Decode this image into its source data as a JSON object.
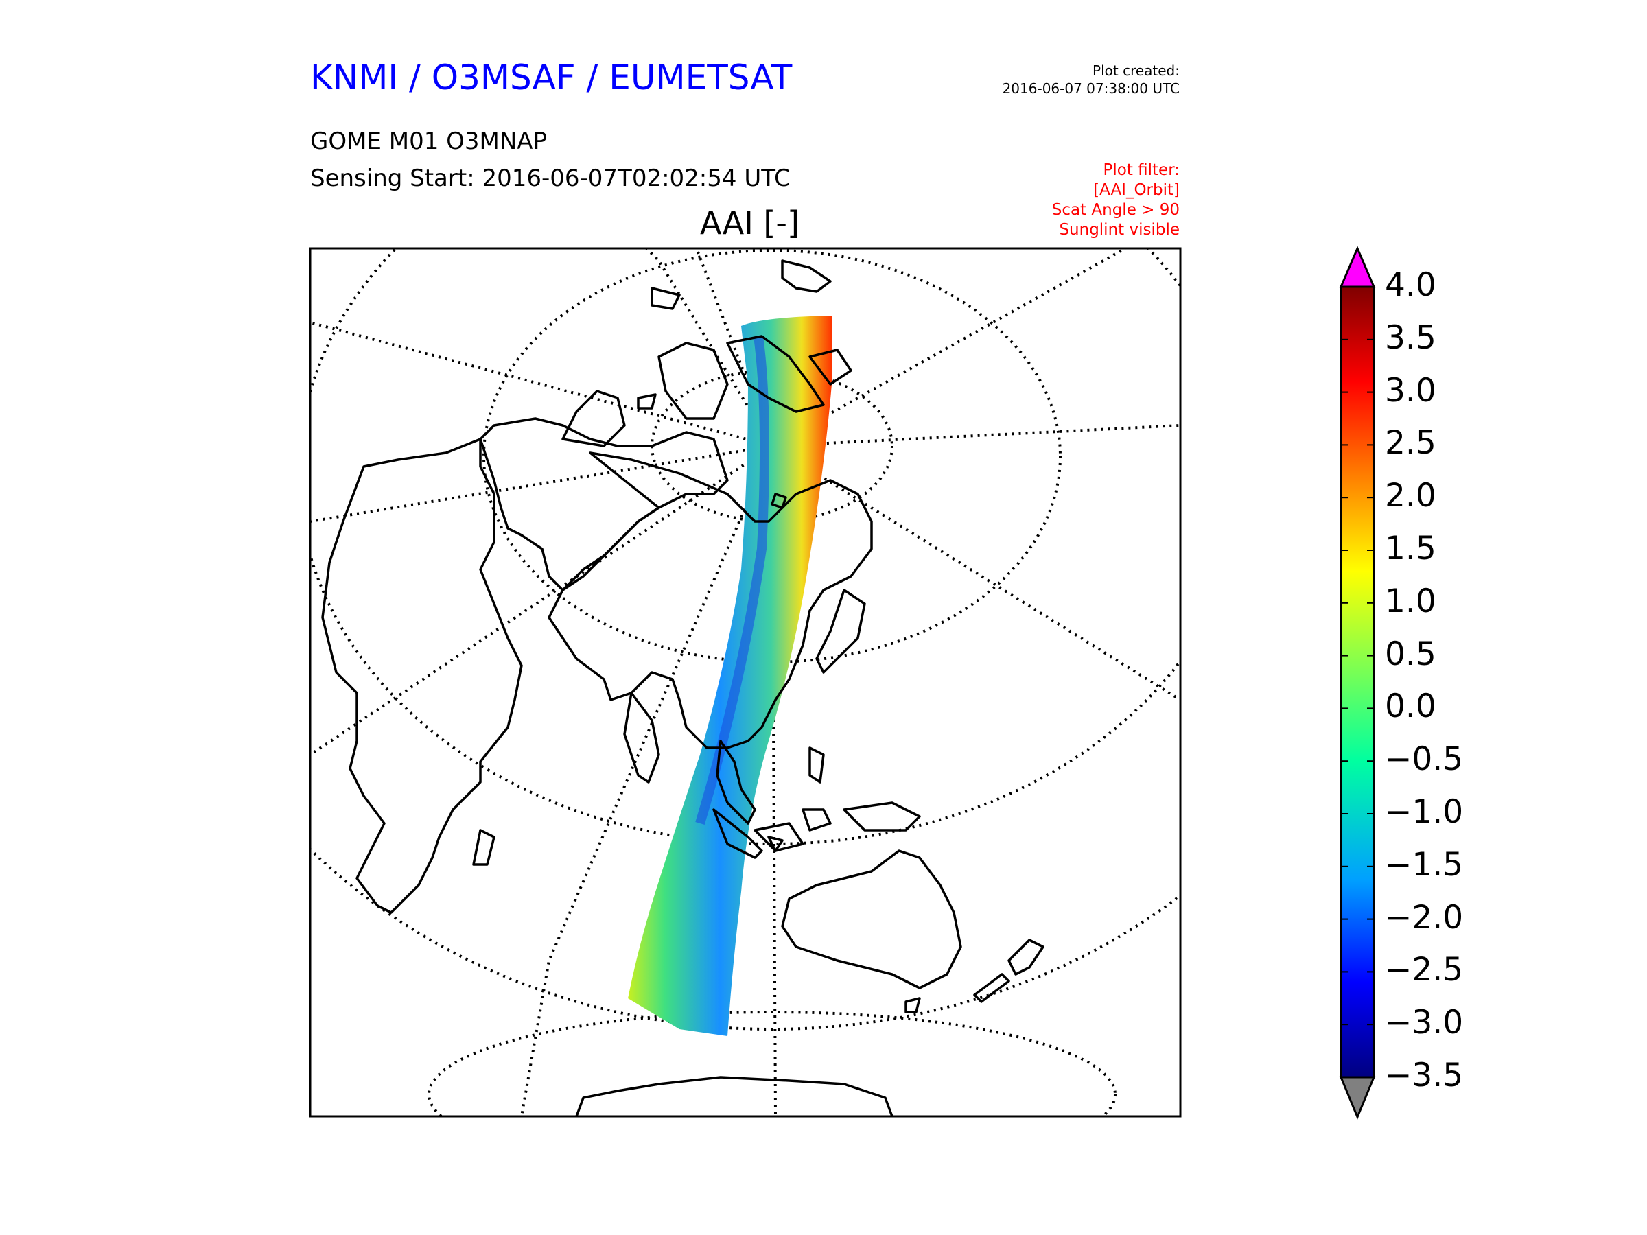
{
  "header": {
    "org_title": "KNMI / O3MSAF / EUMETSAT",
    "plot_created_label": "Plot created:",
    "plot_created_value": "2016-06-07 07:38:00 UTC",
    "product": "GOME M01 O3MNAP",
    "sensing_start": "Sensing Start: 2016-06-07T02:02:54 UTC",
    "filter_lines": [
      "Plot filter:",
      "[AAI_Orbit]",
      "Scat Angle > 90",
      "Sunglint visible"
    ]
  },
  "map": {
    "title": "AAI [-]",
    "projection": "polar stereographic (north pole view)",
    "grid": "dotted lat/lon graticule",
    "variable": "AAI"
  },
  "colorbar": {
    "ticks": [
      "4.0",
      "3.5",
      "3.0",
      "2.5",
      "2.0",
      "1.5",
      "1.0",
      "0.5",
      "0.0",
      "−0.5",
      "−1.0",
      "−1.5",
      "−2.0",
      "−2.5",
      "−3.0",
      "−3.5"
    ],
    "min": -3.5,
    "max": 4.0,
    "colormap": "jet",
    "over_color": "#ff00ff",
    "under_color": "#808080"
  }
}
